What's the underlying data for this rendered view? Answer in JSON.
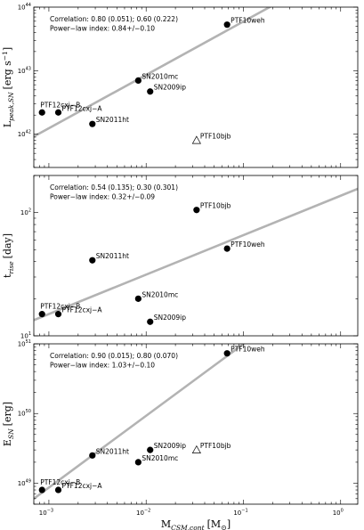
{
  "chart_data": [
    {
      "type": "scatter",
      "ylabel": "L_peak,SN [erg s^-1]",
      "ylabel_parts": {
        "base": "L",
        "sub": "peak,SN",
        "bracket": "[erg s",
        "sup": "−1",
        "close": "]"
      },
      "scale": "log-log",
      "xlim": [
        0.0007,
        1.5
      ],
      "ylim": [
        3e+41,
        1e+44
      ],
      "yticks": [
        {
          "v": 1e+42,
          "b": "10",
          "e": "42"
        },
        {
          "v": 1e+43,
          "b": "10",
          "e": "43"
        },
        {
          "v": 1e+44,
          "b": "10",
          "e": "44"
        }
      ],
      "annotation": [
        "Correlation: 0.80 (0.051);   0.60 (0.222)",
        "Power−law index: 0.84+/−0.10"
      ],
      "points": [
        {
          "name": "PTF12cxj−B",
          "x": 0.00085,
          "y": 2.2e+42,
          "marker": "circle"
        },
        {
          "name": "PTF12cxj−A",
          "x": 0.00125,
          "y": 2.2e+42,
          "marker": "circle"
        },
        {
          "name": "SN2011ht",
          "x": 0.0028,
          "y": 1.45e+42,
          "marker": "circle"
        },
        {
          "name": "SN2010mc",
          "x": 0.0083,
          "y": 7e+42,
          "marker": "circle"
        },
        {
          "name": "SN2009ip",
          "x": 0.011,
          "y": 4.7e+42,
          "marker": "circle"
        },
        {
          "name": "PTF10weh",
          "x": 0.068,
          "y": 5.3e+43,
          "marker": "circle"
        },
        {
          "name": "PTF10bjb",
          "x": 0.033,
          "y": 8e+41,
          "marker": "triangle"
        }
      ],
      "fit": {
        "slope": 0.84,
        "x0": 0.0007,
        "y0": 9.2e+41
      }
    },
    {
      "type": "scatter",
      "ylabel": "t_rise [day]",
      "ylabel_parts": {
        "base": "t",
        "sub": "rise",
        "bracket": "[day]",
        "sup": "",
        "close": ""
      },
      "scale": "log-log",
      "xlim": [
        0.0007,
        1.5
      ],
      "ylim": [
        10,
        200
      ],
      "yticks": [
        {
          "v": 10,
          "b": "10",
          "e": "1"
        },
        {
          "v": 100,
          "b": "10",
          "e": "2"
        }
      ],
      "annotation": [
        "Correlation: 0.54 (0.135);   0.30 (0.301)",
        "Power−law index: 0.32+/−0.09"
      ],
      "points": [
        {
          "name": "PTF12cxj−B",
          "x": 0.00085,
          "y": 15,
          "marker": "circle"
        },
        {
          "name": "PTF12cxj−A",
          "x": 0.00125,
          "y": 15,
          "marker": "circle"
        },
        {
          "name": "SN2011ht",
          "x": 0.0028,
          "y": 41,
          "marker": "circle"
        },
        {
          "name": "SN2010mc",
          "x": 0.0083,
          "y": 20,
          "marker": "circle"
        },
        {
          "name": "SN2009ip",
          "x": 0.011,
          "y": 13,
          "marker": "circle"
        },
        {
          "name": "PTF10weh",
          "x": 0.068,
          "y": 51,
          "marker": "circle"
        },
        {
          "name": "PTF10bjb",
          "x": 0.033,
          "y": 105,
          "marker": "circle"
        }
      ],
      "fit": {
        "slope": 0.32,
        "x0": 0.0007,
        "y0": 13.4
      }
    },
    {
      "type": "scatter",
      "ylabel": "E_SN [erg]",
      "ylabel_parts": {
        "base": "E",
        "sub": "SN",
        "bracket": "[erg]",
        "sup": "",
        "close": ""
      },
      "xlabel": "M_CSM,cont [M_sun]",
      "xlabel_parts": {
        "base": "M",
        "sub": "CSM,cont",
        "bracket": "[M",
        "sun": "⊙",
        "close": "]"
      },
      "scale": "log-log",
      "xlim": [
        0.0007,
        1.5
      ],
      "ylim": [
        5e+48,
        1e+51
      ],
      "yticks": [
        {
          "v": 1e+49,
          "b": "10",
          "e": "49"
        },
        {
          "v": 1e+50,
          "b": "10",
          "e": "50"
        },
        {
          "v": 1e+51,
          "b": "10",
          "e": "51"
        }
      ],
      "xticks": [
        {
          "v": 0.001,
          "b": "10",
          "e": "−3"
        },
        {
          "v": 0.01,
          "b": "10",
          "e": "−2"
        },
        {
          "v": 0.1,
          "b": "10",
          "e": "−1"
        },
        {
          "v": 1,
          "b": "10",
          "e": "0"
        }
      ],
      "annotation": [
        "Correlation: 0.90 (0.015);   0.80 (0.070)",
        "Power−law index: 1.03+/−0.10"
      ],
      "points": [
        {
          "name": "PTF12cxj−B",
          "x": 0.00085,
          "y": 8e+48,
          "marker": "circle"
        },
        {
          "name": "PTF12cxj−A",
          "x": 0.00125,
          "y": 8e+48,
          "marker": "circle"
        },
        {
          "name": "SN2011ht",
          "x": 0.0028,
          "y": 2.5e+49,
          "marker": "circle"
        },
        {
          "name": "SN2010mc",
          "x": 0.0083,
          "y": 2e+49,
          "marker": "circle"
        },
        {
          "name": "SN2009ip",
          "x": 0.011,
          "y": 3e+49,
          "marker": "circle"
        },
        {
          "name": "PTF10weh",
          "x": 0.068,
          "y": 7.3e+50,
          "marker": "circle"
        },
        {
          "name": "PTF10bjb",
          "x": 0.033,
          "y": 3e+49,
          "marker": "triangle"
        }
      ],
      "fit": {
        "slope": 1.03,
        "x0": 0.0007,
        "y0": 6e+48
      }
    }
  ]
}
